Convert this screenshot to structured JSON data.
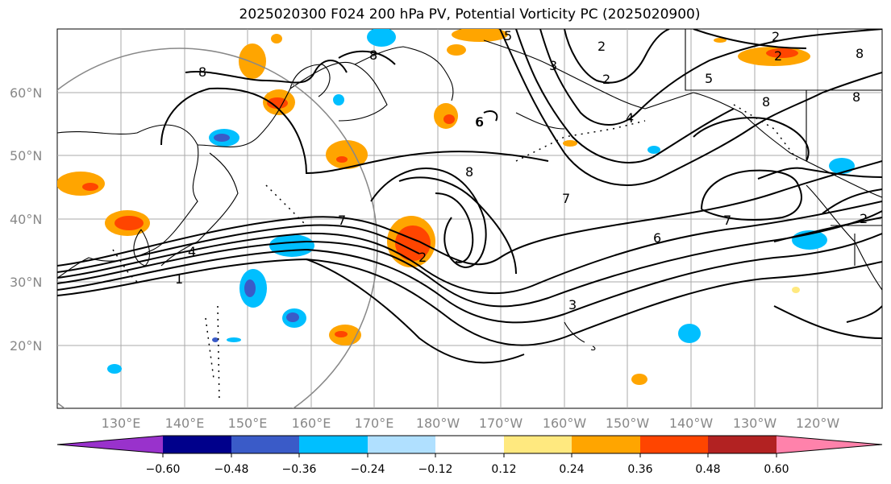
{
  "title": "2025020300 F024 200 hPa PV, Potential Vorticity PC (2025020900)",
  "map": {
    "lat_labels": [
      "60°N",
      "50°N",
      "40°N",
      "30°N",
      "20°N"
    ],
    "lon_labels": [
      "130°E",
      "140°E",
      "150°E",
      "160°E",
      "170°E",
      "180°W",
      "170°W",
      "160°W",
      "150°W",
      "140°W",
      "130°W",
      "120°W"
    ],
    "contour_labels": [
      "8",
      "2",
      "5",
      "8",
      "3",
      "6",
      "2",
      "2",
      "2",
      "4",
      "8",
      "5",
      "8",
      "8",
      "8",
      "7",
      "6",
      "7",
      "7",
      "4",
      "1",
      "2",
      "3",
      "6",
      "2"
    ]
  },
  "colorbar": {
    "tick_labels": [
      "−0.60",
      "−0.48",
      "−0.36",
      "−0.24",
      "−0.12",
      "0.12",
      "0.24",
      "0.36",
      "0.48",
      "0.60"
    ],
    "colors": [
      "#9932cc",
      "#00008b",
      "#3a5bc8",
      "#00bfff",
      "#b0e0ff",
      "#ffffff",
      "#ffe97f",
      "#ffa500",
      "#ff4500",
      "#b22222",
      "#ff82ab"
    ]
  }
}
